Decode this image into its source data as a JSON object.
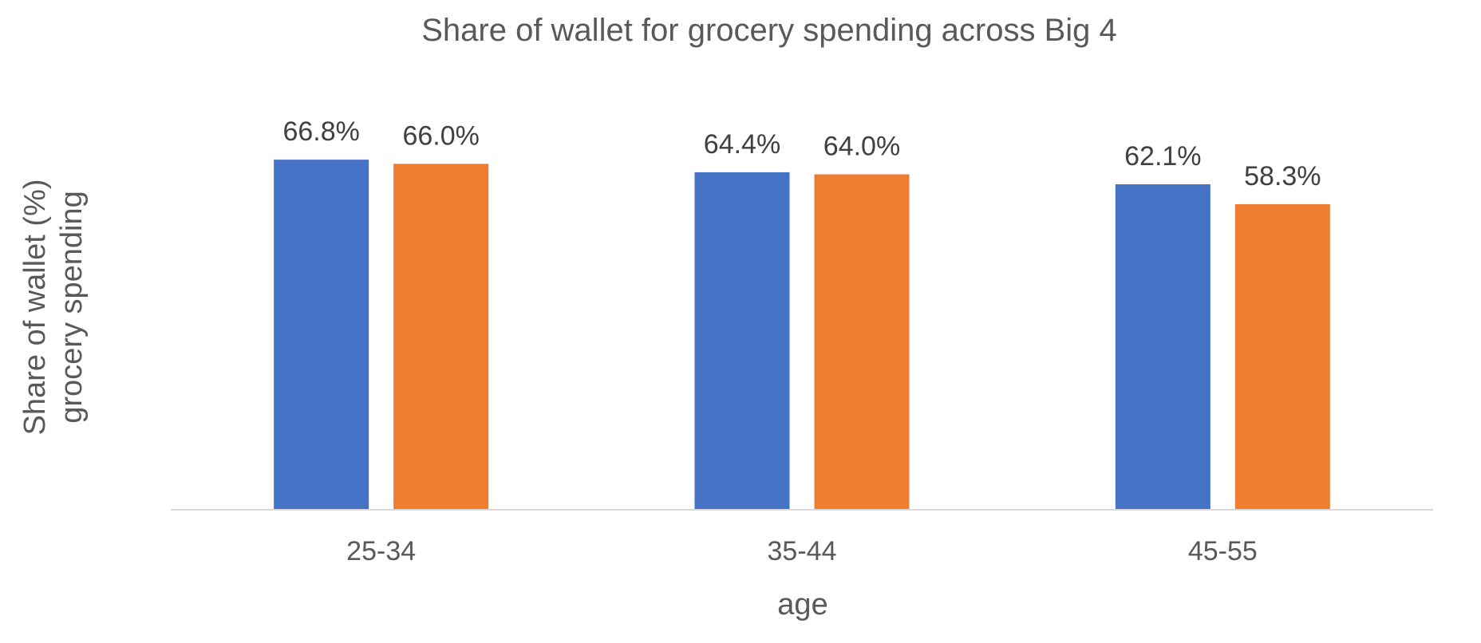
{
  "chart_data": {
    "type": "bar",
    "title": "Share of wallet for grocery spending across Big 4",
    "xlabel": "age",
    "ylabel": [
      "Share of wallet (%)",
      "grocery spending"
    ],
    "categories": [
      "25-34",
      "35-44",
      "45-55"
    ],
    "series": [
      {
        "values": [
          66.8,
          64.4,
          62.1
        ],
        "labels": [
          "66.8%",
          "64.4%",
          "62.1%"
        ],
        "color": "#4472C4"
      },
      {
        "values": [
          66.0,
          64.0,
          58.3
        ],
        "labels": [
          "66.0%",
          "64.0%",
          "58.3%"
        ],
        "color": "#ED7D31"
      }
    ],
    "ylim": [
      0,
      80
    ],
    "grid": false,
    "legend": "none",
    "axis_color": "#D9D9D9"
  }
}
